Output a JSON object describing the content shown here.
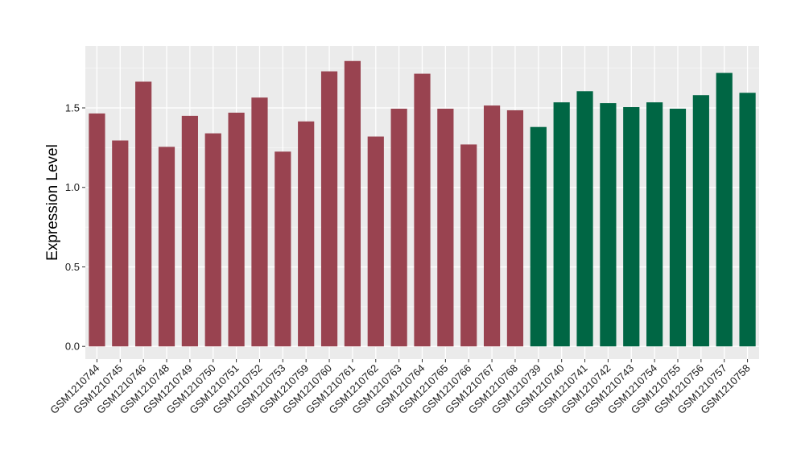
{
  "chart_data": {
    "type": "bar",
    "title": "",
    "xlabel": "",
    "ylabel": "Expression Level",
    "ylim": [
      -0.08,
      1.89
    ],
    "yticks": [
      0.0,
      0.5,
      1.0,
      1.5
    ],
    "ytick_labels": [
      "0.0",
      "0.5",
      "1.0",
      "1.5"
    ],
    "grid": true,
    "background": "#ebebeb",
    "categories": [
      "GSM1210744",
      "GSM1210745",
      "GSM1210746",
      "GSM1210748",
      "GSM1210749",
      "GSM1210750",
      "GSM1210751",
      "GSM1210752",
      "GSM1210753",
      "GSM1210759",
      "GSM1210760",
      "GSM1210761",
      "GSM1210762",
      "GSM1210763",
      "GSM1210764",
      "GSM1210765",
      "GSM1210766",
      "GSM1210767",
      "GSM1210768",
      "GSM1210739",
      "GSM1210740",
      "GSM1210741",
      "GSM1210742",
      "GSM1210743",
      "GSM1210754",
      "GSM1210755",
      "GSM1210756",
      "GSM1210757",
      "GSM1210758"
    ],
    "values": [
      1.465,
      1.295,
      1.665,
      1.255,
      1.45,
      1.34,
      1.47,
      1.565,
      1.225,
      1.415,
      1.73,
      1.795,
      1.32,
      1.495,
      1.715,
      1.495,
      1.27,
      1.515,
      1.485,
      1.38,
      1.535,
      1.605,
      1.53,
      1.505,
      1.535,
      1.495,
      1.58,
      1.72,
      1.595
    ],
    "groups": [
      "a",
      "a",
      "a",
      "a",
      "a",
      "a",
      "a",
      "a",
      "a",
      "a",
      "a",
      "a",
      "a",
      "a",
      "a",
      "a",
      "a",
      "a",
      "a",
      "b",
      "b",
      "b",
      "b",
      "b",
      "b",
      "b",
      "b",
      "b",
      "b"
    ],
    "group_colors": {
      "a": "#994350",
      "b": "#006644"
    }
  }
}
